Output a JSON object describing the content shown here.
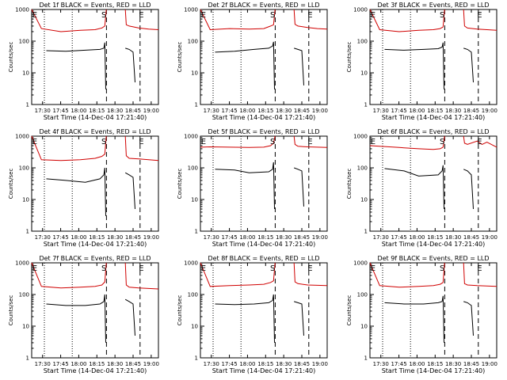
{
  "chart_data": [
    {
      "type": "line",
      "title": "Det 1f BLACK = Events, RED = LLD",
      "xlabel": "Start Time (14-Dec-04 17:21:40)",
      "ylabel": "Counts/sec",
      "yscale": "log",
      "ylim": [
        1,
        1000
      ],
      "x_ticks": [
        "17:30",
        "17:45",
        "18:00",
        "18:15",
        "18:30",
        "18:45",
        "19:00"
      ],
      "y_ticks": [
        "1",
        "10",
        "100",
        "1000"
      ],
      "markers": [
        "E",
        "S",
        "E"
      ],
      "series": [
        {
          "color": "#000000",
          "x": [
            0.15,
            0.35,
            0.55,
            0.7,
            0.74,
            0.75,
            0.76
          ],
          "values": [
            50,
            48,
            52,
            55,
            60,
            90,
            3
          ]
        },
        {
          "color": "#000000",
          "x": [
            0.96,
            1.0,
            1.04,
            1.06
          ],
          "values": [
            60,
            55,
            45,
            5
          ]
        },
        {
          "color": "#d00000",
          "x": [
            0.0,
            0.1,
            0.3,
            0.5,
            0.65,
            0.72,
            0.75,
            0.765
          ],
          "values": [
            1000,
            250,
            200,
            220,
            230,
            260,
            300,
            1000
          ]
        },
        {
          "color": "#d00000",
          "x": [
            0.96,
            0.97,
            1.0,
            1.1,
            1.2,
            1.3
          ],
          "values": [
            1000,
            330,
            300,
            260,
            240,
            230
          ]
        }
      ]
    },
    {
      "type": "line",
      "title": "Det 2f BLACK = Events, RED = LLD",
      "xlabel": "Start Time (14-Dec-04 17:21:40)",
      "ylabel": "Counts/sec",
      "yscale": "log",
      "ylim": [
        1,
        1000
      ],
      "x_ticks": [
        "17:30",
        "17:45",
        "18:00",
        "18:15",
        "18:30",
        "18:45",
        "19:00"
      ],
      "y_ticks": [
        "1",
        "10",
        "100",
        "1000"
      ],
      "markers": [
        "E",
        "S",
        "E"
      ],
      "series": [
        {
          "color": "#000000",
          "x": [
            0.15,
            0.35,
            0.55,
            0.7,
            0.74,
            0.75,
            0.76
          ],
          "values": [
            45,
            48,
            55,
            60,
            70,
            95,
            3
          ]
        },
        {
          "color": "#000000",
          "x": [
            0.96,
            1.0,
            1.04,
            1.06
          ],
          "values": [
            60,
            55,
            50,
            4
          ]
        },
        {
          "color": "#d00000",
          "x": [
            0.0,
            0.1,
            0.3,
            0.5,
            0.65,
            0.72,
            0.75,
            0.765
          ],
          "values": [
            1000,
            230,
            250,
            240,
            250,
            300,
            330,
            1000
          ]
        },
        {
          "color": "#d00000",
          "x": [
            0.96,
            0.97,
            1.0,
            1.1,
            1.2,
            1.3
          ],
          "values": [
            1000,
            340,
            300,
            270,
            250,
            240
          ]
        }
      ]
    },
    {
      "type": "line",
      "title": "Det 3f BLACK = Events, RED = LLD",
      "xlabel": "Start Time (14-Dec-04 17:21:40)",
      "ylabel": "Counts/sec",
      "yscale": "log",
      "ylim": [
        1,
        1000
      ],
      "x_ticks": [
        "17:30",
        "17:45",
        "18:00",
        "18:15",
        "18:30",
        "18:45",
        "19:00"
      ],
      "y_ticks": [
        "1",
        "10",
        "100",
        "1000"
      ],
      "markers": [
        "E",
        "S",
        "E"
      ],
      "series": [
        {
          "color": "#000000",
          "x": [
            0.15,
            0.35,
            0.55,
            0.7,
            0.74,
            0.75,
            0.76
          ],
          "values": [
            55,
            52,
            55,
            58,
            65,
            90,
            3
          ]
        },
        {
          "color": "#000000",
          "x": [
            0.96,
            1.0,
            1.04,
            1.06
          ],
          "values": [
            60,
            55,
            45,
            5
          ]
        },
        {
          "color": "#d00000",
          "x": [
            0.0,
            0.1,
            0.3,
            0.5,
            0.65,
            0.72,
            0.75,
            0.765
          ],
          "values": [
            1000,
            230,
            200,
            220,
            230,
            250,
            280,
            1000
          ]
        },
        {
          "color": "#d00000",
          "x": [
            0.96,
            0.97,
            1.0,
            1.1,
            1.2,
            1.3
          ],
          "values": [
            1000,
            300,
            260,
            240,
            230,
            220
          ]
        }
      ]
    },
    {
      "type": "line",
      "title": "Det 4f BLACK = Events, RED = LLD",
      "xlabel": "Start Time (14-Dec-04 17:21:40)",
      "ylabel": "Counts/sec",
      "yscale": "log",
      "ylim": [
        1,
        1000
      ],
      "x_ticks": [
        "17:30",
        "17:45",
        "18:00",
        "18:15",
        "18:30",
        "18:45",
        "19:00"
      ],
      "y_ticks": [
        "1",
        "10",
        "100",
        "1000"
      ],
      "markers": [
        "E",
        "S",
        "E"
      ],
      "series": [
        {
          "color": "#000000",
          "x": [
            0.15,
            0.35,
            0.55,
            0.7,
            0.74,
            0.75,
            0.76
          ],
          "values": [
            45,
            40,
            35,
            45,
            60,
            100,
            3
          ]
        },
        {
          "color": "#000000",
          "x": [
            0.96,
            1.0,
            1.04,
            1.06
          ],
          "values": [
            70,
            60,
            50,
            5
          ]
        },
        {
          "color": "#d00000",
          "x": [
            0.0,
            0.1,
            0.3,
            0.5,
            0.65,
            0.72,
            0.75,
            0.765
          ],
          "values": [
            1000,
            180,
            170,
            180,
            200,
            230,
            270,
            1000
          ]
        },
        {
          "color": "#d00000",
          "x": [
            0.96,
            0.97,
            1.0,
            1.1,
            1.2,
            1.3
          ],
          "values": [
            1000,
            240,
            200,
            190,
            180,
            170
          ]
        }
      ]
    },
    {
      "type": "line",
      "title": "Det 5f BLACK = Events, RED = LLD",
      "xlabel": "Start Time (14-Dec-04 17:21:40)",
      "ylabel": "Counts/sec",
      "yscale": "log",
      "ylim": [
        1,
        1000
      ],
      "x_ticks": [
        "17:30",
        "17:45",
        "18:00",
        "18:15",
        "18:30",
        "18:45",
        "19:00"
      ],
      "y_ticks": [
        "1",
        "10",
        "100",
        "1000"
      ],
      "markers": [
        "E",
        "S",
        "E"
      ],
      "series": [
        {
          "color": "#000000",
          "x": [
            0.15,
            0.35,
            0.5,
            0.7,
            0.74,
            0.75,
            0.76
          ],
          "values": [
            90,
            85,
            70,
            75,
            90,
            150,
            5
          ]
        },
        {
          "color": "#000000",
          "x": [
            0.96,
            1.0,
            1.04,
            1.06
          ],
          "values": [
            100,
            90,
            80,
            6
          ]
        },
        {
          "color": "#d00000",
          "x": [
            0.0,
            0.1,
            0.3,
            0.5,
            0.65,
            0.72,
            0.75,
            0.765
          ],
          "values": [
            450,
            460,
            450,
            440,
            450,
            500,
            600,
            1000
          ]
        },
        {
          "color": "#d00000",
          "x": [
            0.96,
            0.97,
            1.0,
            1.1,
            1.2,
            1.3
          ],
          "values": [
            1000,
            550,
            480,
            460,
            450,
            440
          ]
        }
      ]
    },
    {
      "type": "line",
      "title": "Det 6f BLACK = Events, RED = LLD",
      "xlabel": "Start Time (14-Dec-04 17:21:40)",
      "ylabel": "Counts/sec",
      "yscale": "log",
      "ylim": [
        1,
        1000
      ],
      "x_ticks": [
        "17:30",
        "17:45",
        "18:00",
        "18:15",
        "18:30",
        "18:45",
        "19:00"
      ],
      "y_ticks": [
        "1",
        "10",
        "100",
        "1000"
      ],
      "markers": [
        "E",
        "S",
        "E"
      ],
      "series": [
        {
          "color": "#000000",
          "x": [
            0.15,
            0.35,
            0.5,
            0.7,
            0.74,
            0.75,
            0.76
          ],
          "values": [
            95,
            80,
            55,
            60,
            80,
            120,
            5
          ]
        },
        {
          "color": "#000000",
          "x": [
            0.96,
            1.0,
            1.04,
            1.06
          ],
          "values": [
            90,
            80,
            60,
            5
          ]
        },
        {
          "color": "#d00000",
          "x": [
            0.0,
            0.1,
            0.3,
            0.5,
            0.65,
            0.72,
            0.75,
            0.765
          ],
          "values": [
            500,
            480,
            440,
            400,
            380,
            400,
            450,
            1000
          ]
        },
        {
          "color": "#d00000",
          "x": [
            0.96,
            0.97,
            1.0,
            1.1,
            1.15,
            1.2,
            1.3
          ],
          "values": [
            1000,
            600,
            550,
            700,
            550,
            650,
            450
          ]
        }
      ]
    },
    {
      "type": "line",
      "title": "Det 7f BLACK = Events, RED = LLD",
      "xlabel": "Start Time (14-Dec-04 17:21:40)",
      "ylabel": "Counts/sec",
      "yscale": "log",
      "ylim": [
        1,
        1000
      ],
      "x_ticks": [
        "17:30",
        "17:45",
        "18:00",
        "18:15",
        "18:30",
        "18:45",
        "19:00"
      ],
      "y_ticks": [
        "1",
        "10",
        "100",
        "1000"
      ],
      "markers": [
        "E",
        "S",
        "E"
      ],
      "series": [
        {
          "color": "#000000",
          "x": [
            0.15,
            0.35,
            0.55,
            0.7,
            0.74,
            0.75,
            0.76
          ],
          "values": [
            50,
            45,
            45,
            50,
            60,
            100,
            3
          ]
        },
        {
          "color": "#000000",
          "x": [
            0.96,
            1.0,
            1.04,
            1.06
          ],
          "values": [
            70,
            60,
            50,
            5
          ]
        },
        {
          "color": "#d00000",
          "x": [
            0.0,
            0.1,
            0.3,
            0.5,
            0.65,
            0.72,
            0.75,
            0.765
          ],
          "values": [
            1000,
            180,
            160,
            170,
            180,
            200,
            250,
            1000
          ]
        },
        {
          "color": "#d00000",
          "x": [
            0.96,
            0.97,
            1.0,
            1.1,
            1.2,
            1.3
          ],
          "values": [
            1000,
            200,
            170,
            160,
            155,
            150
          ]
        }
      ]
    },
    {
      "type": "line",
      "title": "Det 8f BLACK = Events, RED = LLD",
      "xlabel": "Start Time (14-Dec-04 17:21:40)",
      "ylabel": "Counts/sec",
      "yscale": "log",
      "ylim": [
        1,
        1000
      ],
      "x_ticks": [
        "17:30",
        "17:45",
        "18:00",
        "18:15",
        "18:30",
        "18:45",
        "19:00"
      ],
      "y_ticks": [
        "1",
        "10",
        "100",
        "1000"
      ],
      "markers": [
        "E",
        "S",
        "E"
      ],
      "series": [
        {
          "color": "#000000",
          "x": [
            0.15,
            0.35,
            0.55,
            0.7,
            0.74,
            0.75,
            0.76
          ],
          "values": [
            50,
            48,
            50,
            55,
            65,
            100,
            3
          ]
        },
        {
          "color": "#000000",
          "x": [
            0.96,
            1.0,
            1.04,
            1.06
          ],
          "values": [
            60,
            55,
            50,
            5
          ]
        },
        {
          "color": "#d00000",
          "x": [
            0.0,
            0.1,
            0.3,
            0.5,
            0.65,
            0.72,
            0.75,
            0.765
          ],
          "values": [
            1000,
            180,
            190,
            200,
            210,
            240,
            270,
            1000
          ]
        },
        {
          "color": "#d00000",
          "x": [
            0.96,
            0.97,
            1.0,
            1.1,
            1.2,
            1.3
          ],
          "values": [
            1000,
            250,
            220,
            200,
            195,
            190
          ]
        }
      ]
    },
    {
      "type": "line",
      "title": "Det 9f BLACK = Events, RED = LLD",
      "xlabel": "Start Time (14-Dec-04 17:21:40)",
      "ylabel": "Counts/sec",
      "yscale": "log",
      "ylim": [
        1,
        1000
      ],
      "x_ticks": [
        "17:30",
        "17:45",
        "18:00",
        "18:15",
        "18:30",
        "18:45",
        "19:00"
      ],
      "y_ticks": [
        "1",
        "10",
        "100",
        "1000"
      ],
      "markers": [
        "E",
        "S",
        "E"
      ],
      "series": [
        {
          "color": "#000000",
          "x": [
            0.15,
            0.35,
            0.55,
            0.7,
            0.74,
            0.75,
            0.76
          ],
          "values": [
            55,
            50,
            50,
            55,
            60,
            90,
            3
          ]
        },
        {
          "color": "#000000",
          "x": [
            0.96,
            1.0,
            1.04,
            1.06
          ],
          "values": [
            60,
            55,
            45,
            5
          ]
        },
        {
          "color": "#d00000",
          "x": [
            0.0,
            0.1,
            0.3,
            0.5,
            0.65,
            0.72,
            0.75,
            0.765
          ],
          "values": [
            1000,
            190,
            170,
            180,
            190,
            210,
            240,
            1000
          ]
        },
        {
          "color": "#d00000",
          "x": [
            0.96,
            0.97,
            1.0,
            1.1,
            1.2,
            1.3
          ],
          "values": [
            1000,
            220,
            200,
            190,
            185,
            180
          ]
        }
      ]
    }
  ]
}
